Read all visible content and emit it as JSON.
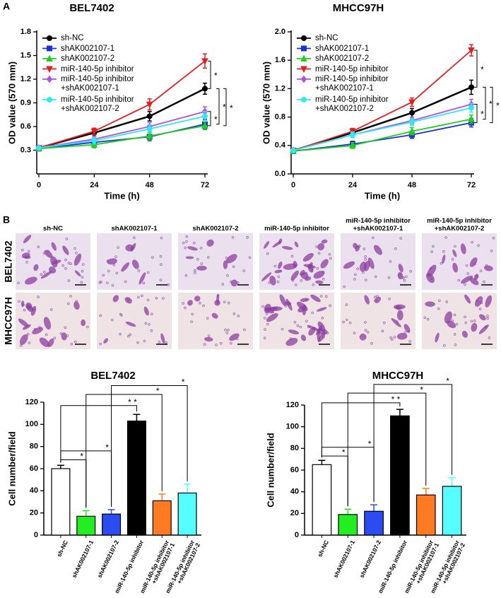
{
  "panels": [
    "A",
    "B"
  ],
  "micrographs": {
    "columns": [
      "sh-NC",
      "shAK002107-1",
      "shAK002107-2",
      "miR-140-5p inhibitor",
      "miR-140-5p inhibitor +shAK002107-1",
      "miR-140-5p inhibitor +shAK002107-2"
    ],
    "rows": [
      "BEL7402",
      "MHCC97H"
    ]
  },
  "chart_data": [
    {
      "type": "line",
      "title": "BEL7402",
      "x_label": "Time (h)",
      "y_label": "OD value (570 mm)",
      "x": [
        0,
        24,
        48,
        72
      ],
      "xlim": [
        0,
        72
      ],
      "xticks": [
        0,
        24,
        48,
        72
      ],
      "ylim": [
        0,
        1.8
      ],
      "yticks": [
        0.3,
        0.6,
        0.9,
        1.2,
        1.5,
        1.8
      ],
      "series": [
        {
          "name": "sh-NC",
          "color": "#000000",
          "marker": "circle",
          "values": [
            0.33,
            0.52,
            0.73,
            1.08
          ],
          "errors": [
            0.02,
            0.04,
            0.06,
            0.07
          ]
        },
        {
          "name": "shAK002107-1",
          "color": "#1f2fd8",
          "marker": "square",
          "values": [
            0.32,
            0.4,
            0.47,
            0.63
          ],
          "errors": [
            0.02,
            0.04,
            0.05,
            0.06
          ]
        },
        {
          "name": "shAK002107-2",
          "color": "#22cc22",
          "marker": "triangle",
          "values": [
            0.32,
            0.37,
            0.48,
            0.61
          ],
          "errors": [
            0.02,
            0.04,
            0.05,
            0.05
          ]
        },
        {
          "name": "miR-140-5p inhibitor",
          "color": "#e02020",
          "marker": "triangle-down",
          "values": [
            0.33,
            0.54,
            0.88,
            1.43
          ],
          "errors": [
            0.02,
            0.04,
            0.07,
            0.09
          ]
        },
        {
          "name": "miR-140-5p inhibitor +shAK002107-1",
          "color": "#b050e8",
          "marker": "diamond",
          "values": [
            0.33,
            0.44,
            0.6,
            0.79
          ],
          "errors": [
            0.02,
            0.04,
            0.05,
            0.06
          ]
        },
        {
          "name": "miR-140-5p inhibitor +shAK002107-2",
          "color": "#30e8f0",
          "marker": "circle",
          "values": [
            0.33,
            0.42,
            0.57,
            0.73
          ],
          "errors": [
            0.02,
            0.04,
            0.05,
            0.06
          ]
        }
      ],
      "annotations": [
        "*",
        "*",
        "*",
        "*"
      ]
    },
    {
      "type": "line",
      "title": "MHCC97H",
      "x_label": "Time (h)",
      "y_label": "OD value (570 mm)",
      "x": [
        0,
        24,
        48,
        72
      ],
      "xlim": [
        0,
        72
      ],
      "xticks": [
        0,
        24,
        48,
        72
      ],
      "ylim": [
        0,
        2
      ],
      "yticks": [
        {
          "value": 0,
          "label": "0.0"
        },
        0.4,
        0.8,
        1.2,
        1.6,
        {
          "value": 2,
          "label": "2.0"
        }
      ],
      "series": [
        {
          "name": "sh-NC",
          "color": "#000000",
          "marker": "circle",
          "values": [
            0.33,
            0.58,
            0.86,
            1.22
          ],
          "errors": [
            0.02,
            0.04,
            0.06,
            0.1
          ]
        },
        {
          "name": "shAK002107-1",
          "color": "#1f2fd8",
          "marker": "square",
          "values": [
            0.32,
            0.42,
            0.55,
            0.72
          ],
          "errors": [
            0.02,
            0.04,
            0.05,
            0.06
          ]
        },
        {
          "name": "shAK002107-2",
          "color": "#22cc22",
          "marker": "triangle",
          "values": [
            0.32,
            0.4,
            0.6,
            0.77
          ],
          "errors": [
            0.02,
            0.04,
            0.05,
            0.06
          ]
        },
        {
          "name": "miR-140-5p inhibitor",
          "color": "#e02020",
          "marker": "triangle-down",
          "values": [
            0.33,
            0.6,
            1.01,
            1.74
          ],
          "errors": [
            0.02,
            0.04,
            0.06,
            0.08
          ]
        },
        {
          "name": "miR-140-5p inhibitor +shAK002107-1",
          "color": "#b050e8",
          "marker": "diamond",
          "values": [
            0.33,
            0.55,
            0.75,
            0.98
          ],
          "errors": [
            0.02,
            0.04,
            0.05,
            0.07
          ]
        },
        {
          "name": "miR-140-5p inhibitor +shAK002107-2",
          "color": "#30e8f0",
          "marker": "circle",
          "values": [
            0.33,
            0.55,
            0.73,
            0.93
          ],
          "errors": [
            0.02,
            0.04,
            0.05,
            0.06
          ]
        }
      ],
      "annotations": [
        "*",
        "*",
        "*",
        "*"
      ]
    },
    {
      "type": "bar",
      "title": "BEL7402",
      "y_label": "Cell number/field",
      "categories": [
        "sh-NC",
        "shAK002107-1",
        "shAK002107-2",
        "miR-140-5p inhibitor",
        "miR-140-5p inhibitor +shAK002107-1",
        "miR-140-5p inhibitor +shAK002107-2"
      ],
      "values": [
        60,
        17,
        19,
        103,
        31,
        38
      ],
      "errors": [
        3,
        5,
        4,
        6,
        6,
        8
      ],
      "colors": [
        "#ffffff",
        "#22ee22",
        "#2a4cf0",
        "#000000",
        "#ff7a22",
        "#55ffff"
      ],
      "ylim": [
        0,
        120
      ],
      "yticks": [
        0,
        20,
        40,
        60,
        80,
        100,
        120
      ],
      "annotations": [
        "*",
        "*",
        "* *",
        "*",
        "*"
      ]
    },
    {
      "type": "bar",
      "title": "MHCC97H",
      "y_label": "Cell number/field",
      "categories": [
        "sh-NC",
        "shAK002107-1",
        "shAK002107-2",
        "miR-140-5p inhibitor",
        "miR-140-5p inhibitor +shAK002107-1",
        "miR-140-5p inhibitor +shAK002107-2"
      ],
      "values": [
        65,
        19,
        22,
        110,
        37,
        45
      ],
      "errors": [
        4,
        5,
        6,
        6,
        6,
        8
      ],
      "colors": [
        "#ffffff",
        "#22ee22",
        "#2a4cf0",
        "#000000",
        "#ff7a22",
        "#55ffff"
      ],
      "ylim": [
        0,
        120
      ],
      "yticks": [
        0,
        20,
        40,
        60,
        80,
        100,
        120
      ],
      "annotations": [
        "*",
        "*",
        "* *",
        "*",
        "*"
      ]
    }
  ]
}
